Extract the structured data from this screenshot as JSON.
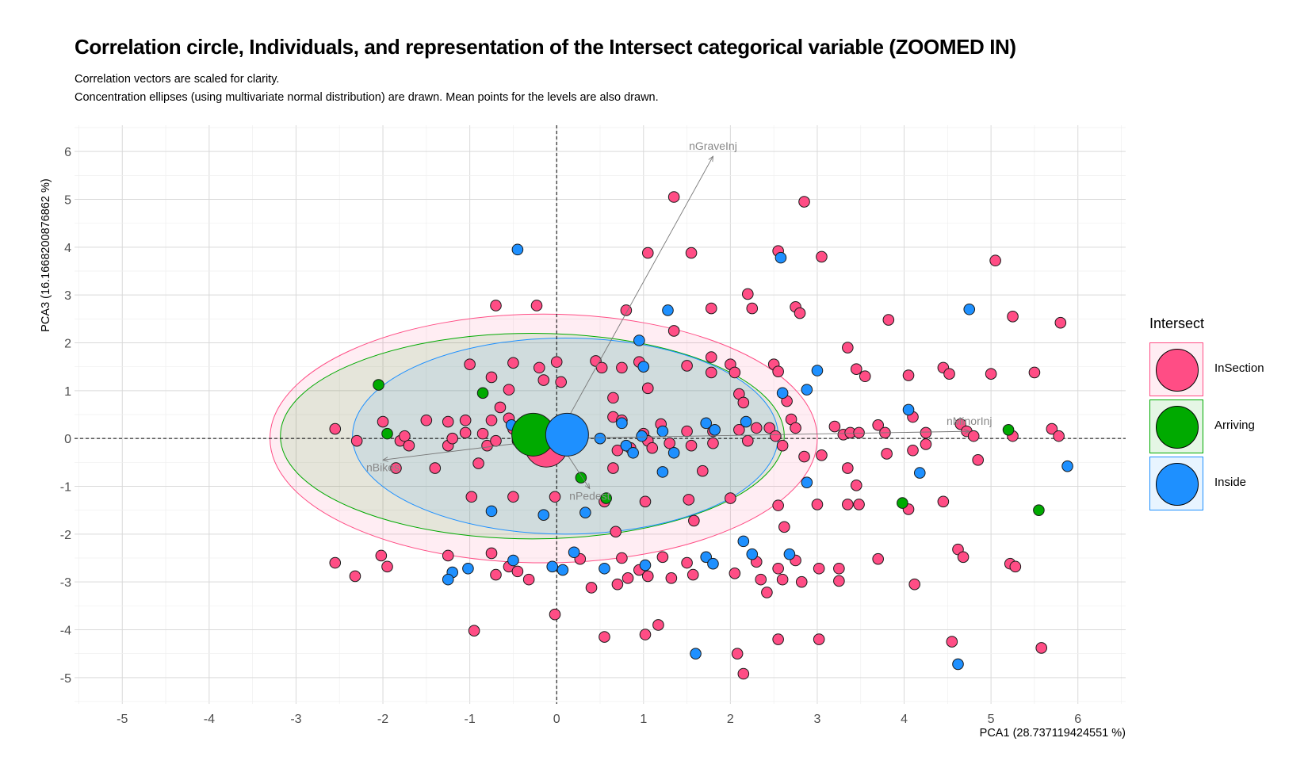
{
  "chart_data": {
    "type": "scatter",
    "title": "Correlation circle, Individuals, and representation of the Intersect categorical variable (ZOOMED IN)",
    "subtitle_lines": [
      "Correlation vectors are scaled for clarity.",
      "Concentration ellipses (using multivariate normal distribution) are drawn. Mean points for the levels are also drawn."
    ],
    "xlabel": "PCA1 (28.737119424551 %)",
    "ylabel": "PCA3 (16.1668200876862 %)",
    "xlim": [
      -5.55,
      6.55
    ],
    "ylim": [
      -5.55,
      6.55
    ],
    "x_ticks": [
      "-5",
      "-4",
      "-3",
      "-2",
      "-1",
      "0",
      "1",
      "2",
      "3",
      "4",
      "5",
      "6"
    ],
    "y_ticks": [
      "-5",
      "-4",
      "-3",
      "-2",
      "-1",
      "0",
      "1",
      "2",
      "3",
      "4",
      "5",
      "6"
    ],
    "grid": true,
    "legend": {
      "title": "Intersect",
      "placement": "right",
      "entries": [
        {
          "label": "InSection",
          "color": "#ff4d85"
        },
        {
          "label": "Arriving",
          "color": "#00aa00"
        },
        {
          "label": "Inside",
          "color": "#1e90ff"
        }
      ]
    },
    "vectors": [
      {
        "label": "nGraveInj",
        "x": 1.8,
        "y": 5.9
      },
      {
        "label": "nMinorInj",
        "x": 4.75,
        "y": 0.15
      },
      {
        "label": "nBikes",
        "x": -2.0,
        "y": -0.45
      },
      {
        "label": "nPedest",
        "x": 0.38,
        "y": -1.05
      }
    ],
    "ellipses": [
      {
        "group": "InSection",
        "cx": -0.15,
        "cy": 0.0,
        "rx": 3.15,
        "ry": 2.6
      },
      {
        "group": "Arriving",
        "cx": -0.28,
        "cy": 0.05,
        "rx": 2.9,
        "ry": 2.15
      },
      {
        "group": "Inside",
        "cx": 0.1,
        "cy": 0.05,
        "rx": 2.45,
        "ry": 2.05
      }
    ],
    "means": [
      {
        "group": "InSection",
        "x": -0.12,
        "y": -0.15
      },
      {
        "group": "Arriving",
        "x": -0.27,
        "y": 0.08
      },
      {
        "group": "Inside",
        "x": 0.12,
        "y": 0.08
      }
    ],
    "series": [
      {
        "name": "InSection",
        "color": "#ff4d85",
        "points": [
          [
            1.35,
            5.05
          ],
          [
            2.85,
            4.95
          ],
          [
            1.05,
            3.88
          ],
          [
            1.55,
            3.88
          ],
          [
            2.55,
            3.92
          ],
          [
            3.05,
            3.8
          ],
          [
            5.05,
            3.72
          ],
          [
            -0.7,
            2.78
          ],
          [
            -0.23,
            2.78
          ],
          [
            2.2,
            3.02
          ],
          [
            2.75,
            2.75
          ],
          [
            2.8,
            2.62
          ],
          [
            1.78,
            2.72
          ],
          [
            2.25,
            2.72
          ],
          [
            0.8,
            2.68
          ],
          [
            3.82,
            2.48
          ],
          [
            5.25,
            2.55
          ],
          [
            5.8,
            2.42
          ],
          [
            1.35,
            2.25
          ],
          [
            3.35,
            1.9
          ],
          [
            -1.0,
            1.55
          ],
          [
            -0.5,
            1.58
          ],
          [
            -0.2,
            1.48
          ],
          [
            0.0,
            1.6
          ],
          [
            0.45,
            1.62
          ],
          [
            0.52,
            1.48
          ],
          [
            0.75,
            1.48
          ],
          [
            0.95,
            1.6
          ],
          [
            1.5,
            1.52
          ],
          [
            1.78,
            1.7
          ],
          [
            2.0,
            1.55
          ],
          [
            2.5,
            1.55
          ],
          [
            2.55,
            1.4
          ],
          [
            1.78,
            1.38
          ],
          [
            2.05,
            1.38
          ],
          [
            3.45,
            1.45
          ],
          [
            3.55,
            1.3
          ],
          [
            4.05,
            1.32
          ],
          [
            4.45,
            1.48
          ],
          [
            4.52,
            1.35
          ],
          [
            5.0,
            1.35
          ],
          [
            5.5,
            1.38
          ],
          [
            -0.75,
            1.28
          ],
          [
            -0.15,
            1.22
          ],
          [
            0.05,
            1.18
          ],
          [
            -0.55,
            1.02
          ],
          [
            1.05,
            1.05
          ],
          [
            0.65,
            0.85
          ],
          [
            2.1,
            0.93
          ],
          [
            2.15,
            0.75
          ],
          [
            2.65,
            0.78
          ],
          [
            -2.55,
            0.2
          ],
          [
            -2.3,
            -0.05
          ],
          [
            -2.0,
            0.35
          ],
          [
            -1.8,
            -0.05
          ],
          [
            -1.75,
            0.05
          ],
          [
            -1.7,
            -0.15
          ],
          [
            -1.5,
            0.38
          ],
          [
            -1.25,
            0.35
          ],
          [
            -1.25,
            -0.15
          ],
          [
            -1.2,
            0.0
          ],
          [
            -1.05,
            0.38
          ],
          [
            -1.05,
            0.12
          ],
          [
            -0.85,
            0.1
          ],
          [
            -0.75,
            0.38
          ],
          [
            -0.8,
            -0.15
          ],
          [
            -0.7,
            -0.05
          ],
          [
            -0.65,
            0.65
          ],
          [
            -0.55,
            0.42
          ],
          [
            -0.5,
            0.2
          ],
          [
            -0.35,
            0.25
          ],
          [
            -0.45,
            -0.05
          ],
          [
            0.3,
            0.12
          ],
          [
            0.65,
            0.45
          ],
          [
            0.7,
            -0.25
          ],
          [
            0.75,
            0.38
          ],
          [
            0.85,
            -0.2
          ],
          [
            1.0,
            0.1
          ],
          [
            1.05,
            -0.05
          ],
          [
            1.1,
            -0.2
          ],
          [
            1.2,
            0.3
          ],
          [
            1.3,
            -0.1
          ],
          [
            1.5,
            0.15
          ],
          [
            1.55,
            -0.15
          ],
          [
            1.8,
            0.15
          ],
          [
            1.8,
            -0.1
          ],
          [
            2.1,
            0.18
          ],
          [
            2.2,
            -0.05
          ],
          [
            2.3,
            0.22
          ],
          [
            2.45,
            0.22
          ],
          [
            2.52,
            0.05
          ],
          [
            2.6,
            -0.15
          ],
          [
            2.7,
            0.4
          ],
          [
            2.75,
            0.22
          ],
          [
            3.2,
            0.25
          ],
          [
            3.3,
            0.08
          ],
          [
            3.38,
            0.12
          ],
          [
            3.48,
            0.12
          ],
          [
            3.7,
            0.28
          ],
          [
            3.78,
            0.12
          ],
          [
            4.25,
            0.12
          ],
          [
            4.1,
            0.45
          ],
          [
            4.65,
            0.3
          ],
          [
            4.72,
            0.15
          ],
          [
            4.8,
            0.05
          ],
          [
            5.25,
            0.05
          ],
          [
            5.7,
            0.2
          ],
          [
            5.78,
            0.05
          ],
          [
            -1.85,
            -0.62
          ],
          [
            -1.4,
            -0.62
          ],
          [
            -0.9,
            -0.52
          ],
          [
            0.65,
            -0.62
          ],
          [
            1.68,
            -0.68
          ],
          [
            3.35,
            -0.62
          ],
          [
            3.8,
            -0.32
          ],
          [
            4.1,
            -0.25
          ],
          [
            4.25,
            -0.12
          ],
          [
            4.85,
            -0.45
          ],
          [
            2.85,
            -0.38
          ],
          [
            3.05,
            -0.35
          ],
          [
            3.45,
            -0.98
          ],
          [
            -0.98,
            -1.22
          ],
          [
            -0.5,
            -1.22
          ],
          [
            -0.02,
            -1.22
          ],
          [
            0.55,
            -1.32
          ],
          [
            1.02,
            -1.32
          ],
          [
            1.52,
            -1.28
          ],
          [
            1.58,
            -1.72
          ],
          [
            2.0,
            -1.25
          ],
          [
            2.55,
            -1.4
          ],
          [
            3.0,
            -1.38
          ],
          [
            3.35,
            -1.38
          ],
          [
            3.48,
            -1.38
          ],
          [
            4.05,
            -1.48
          ],
          [
            4.45,
            -1.32
          ],
          [
            0.68,
            -1.95
          ],
          [
            2.62,
            -1.85
          ],
          [
            -2.55,
            -2.6
          ],
          [
            -2.32,
            -2.88
          ],
          [
            -2.02,
            -2.45
          ],
          [
            -1.95,
            -2.68
          ],
          [
            -1.25,
            -2.45
          ],
          [
            -0.75,
            -2.4
          ],
          [
            -0.7,
            -2.85
          ],
          [
            -0.55,
            -2.68
          ],
          [
            -0.45,
            -2.78
          ],
          [
            -0.32,
            -2.95
          ],
          [
            0.27,
            -2.52
          ],
          [
            0.4,
            -3.12
          ],
          [
            0.75,
            -2.5
          ],
          [
            0.7,
            -3.05
          ],
          [
            0.82,
            -2.92
          ],
          [
            0.95,
            -2.75
          ],
          [
            1.05,
            -2.88
          ],
          [
            1.22,
            -2.48
          ],
          [
            1.32,
            -2.92
          ],
          [
            1.5,
            -2.6
          ],
          [
            1.57,
            -2.85
          ],
          [
            2.05,
            -2.82
          ],
          [
            2.3,
            -2.58
          ],
          [
            2.35,
            -2.95
          ],
          [
            2.42,
            -3.22
          ],
          [
            2.55,
            -2.72
          ],
          [
            2.6,
            -2.95
          ],
          [
            2.75,
            -2.55
          ],
          [
            2.82,
            -3.0
          ],
          [
            3.02,
            -2.72
          ],
          [
            3.25,
            -2.72
          ],
          [
            3.25,
            -2.98
          ],
          [
            3.7,
            -2.52
          ],
          [
            4.12,
            -3.05
          ],
          [
            4.62,
            -2.32
          ],
          [
            4.68,
            -2.48
          ],
          [
            5.22,
            -2.62
          ],
          [
            5.28,
            -2.68
          ],
          [
            -0.95,
            -4.02
          ],
          [
            -0.02,
            -3.68
          ],
          [
            0.55,
            -4.15
          ],
          [
            1.02,
            -4.1
          ],
          [
            1.17,
            -3.9
          ],
          [
            2.08,
            -4.5
          ],
          [
            2.15,
            -4.92
          ],
          [
            2.55,
            -4.2
          ],
          [
            3.02,
            -4.2
          ],
          [
            4.55,
            -4.25
          ],
          [
            5.58,
            -4.38
          ]
        ]
      },
      {
        "name": "Arriving",
        "color": "#00aa00",
        "points": [
          [
            -2.05,
            1.12
          ],
          [
            -0.85,
            0.95
          ],
          [
            -1.95,
            0.1
          ],
          [
            0.28,
            -0.82
          ],
          [
            0.57,
            -1.25
          ],
          [
            3.98,
            -1.35
          ],
          [
            5.2,
            0.18
          ],
          [
            5.55,
            -1.5
          ]
        ]
      },
      {
        "name": "Inside",
        "color": "#1e90ff",
        "points": [
          [
            -0.45,
            3.95
          ],
          [
            1.28,
            2.68
          ],
          [
            4.75,
            2.7
          ],
          [
            0.95,
            2.05
          ],
          [
            1.0,
            1.5
          ],
          [
            3.0,
            1.42
          ],
          [
            2.6,
            0.95
          ],
          [
            2.88,
            1.02
          ],
          [
            4.05,
            0.6
          ],
          [
            0.75,
            0.32
          ],
          [
            1.72,
            0.32
          ],
          [
            1.82,
            0.18
          ],
          [
            2.18,
            0.35
          ],
          [
            0.5,
            0.0
          ],
          [
            0.8,
            -0.15
          ],
          [
            0.88,
            -0.3
          ],
          [
            0.98,
            0.05
          ],
          [
            1.35,
            -0.3
          ],
          [
            1.22,
            0.15
          ],
          [
            -0.52,
            0.28
          ],
          [
            -0.38,
            0.12
          ],
          [
            1.22,
            -0.7
          ],
          [
            4.18,
            -0.72
          ],
          [
            5.88,
            -0.58
          ],
          [
            2.88,
            -0.92
          ],
          [
            -0.75,
            -1.52
          ],
          [
            -0.15,
            -1.6
          ],
          [
            0.33,
            -1.55
          ],
          [
            -1.2,
            -2.8
          ],
          [
            -1.25,
            -2.95
          ],
          [
            -1.02,
            -2.72
          ],
          [
            -0.5,
            -2.55
          ],
          [
            -0.05,
            -2.68
          ],
          [
            0.07,
            -2.75
          ],
          [
            0.2,
            -2.38
          ],
          [
            0.55,
            -2.72
          ],
          [
            1.02,
            -2.65
          ],
          [
            1.72,
            -2.48
          ],
          [
            1.8,
            -2.62
          ],
          [
            2.15,
            -2.15
          ],
          [
            2.25,
            -2.42
          ],
          [
            2.68,
            -2.42
          ],
          [
            1.6,
            -4.5
          ],
          [
            4.62,
            -4.72
          ],
          [
            2.58,
            3.78
          ]
        ]
      }
    ]
  }
}
